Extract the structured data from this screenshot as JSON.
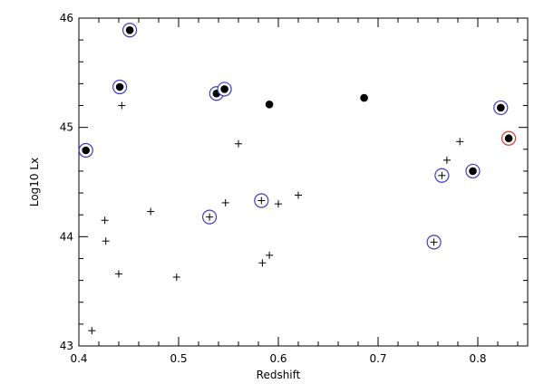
{
  "chart_data": {
    "type": "scatter",
    "xlabel": "Redshift",
    "ylabel": "Log10  Lx",
    "xlim": [
      0.4,
      0.85
    ],
    "ylim": [
      43,
      46
    ],
    "x_ticks": [
      "0.4",
      "0.5",
      "0.6",
      "0.7",
      "0.8"
    ],
    "y_ticks": [
      "43",
      "44",
      "45",
      "46"
    ],
    "grid": false,
    "ring_colors": {
      "blue": "#3b3bc8",
      "red": "#d83a2e"
    },
    "series": [
      {
        "marker": "plus",
        "points": [
          {
            "x": 0.443,
            "y": 45.2
          },
          {
            "x": 0.56,
            "y": 44.85
          },
          {
            "x": 0.472,
            "y": 44.23
          },
          {
            "x": 0.426,
            "y": 44.15
          },
          {
            "x": 0.427,
            "y": 43.96
          },
          {
            "x": 0.547,
            "y": 44.31
          },
          {
            "x": 0.6,
            "y": 44.3
          },
          {
            "x": 0.62,
            "y": 44.38
          },
          {
            "x": 0.44,
            "y": 43.66
          },
          {
            "x": 0.498,
            "y": 43.63
          },
          {
            "x": 0.584,
            "y": 43.76
          },
          {
            "x": 0.591,
            "y": 43.83
          },
          {
            "x": 0.413,
            "y": 43.14
          },
          {
            "x": 0.769,
            "y": 44.7
          },
          {
            "x": 0.782,
            "y": 44.87
          }
        ]
      },
      {
        "marker": "plus",
        "ring": "blue",
        "points": [
          {
            "x": 0.531,
            "y": 44.18
          },
          {
            "x": 0.583,
            "y": 44.33
          },
          {
            "x": 0.756,
            "y": 43.95
          },
          {
            "x": 0.764,
            "y": 44.56
          }
        ]
      },
      {
        "marker": "dot",
        "points": [
          {
            "x": 0.591,
            "y": 45.21
          },
          {
            "x": 0.686,
            "y": 45.27
          }
        ]
      },
      {
        "marker": "dot",
        "ring": "blue",
        "points": [
          {
            "x": 0.407,
            "y": 44.79
          },
          {
            "x": 0.441,
            "y": 45.37
          },
          {
            "x": 0.451,
            "y": 45.89
          },
          {
            "x": 0.538,
            "y": 45.31
          },
          {
            "x": 0.546,
            "y": 45.35
          },
          {
            "x": 0.795,
            "y": 44.6
          },
          {
            "x": 0.823,
            "y": 45.18
          }
        ]
      },
      {
        "marker": "dot",
        "ring": "red",
        "points": [
          {
            "x": 0.831,
            "y": 44.9
          }
        ]
      }
    ]
  }
}
